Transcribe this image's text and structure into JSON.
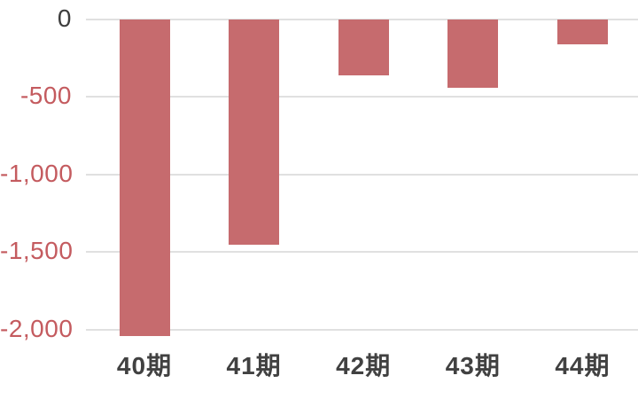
{
  "chart_data": {
    "type": "bar",
    "title": "",
    "xlabel": "",
    "ylabel": "",
    "categories": [
      "40期",
      "41期",
      "42期",
      "43期",
      "44期"
    ],
    "values": [
      -2040,
      -1450,
      -360,
      -440,
      -160
    ],
    "yticks": [
      0,
      -500,
      -1000,
      -1500,
      -2000
    ],
    "ytick_labels": [
      "0",
      "-500",
      "-1,000",
      "-1,500",
      "-2,000"
    ],
    "ylim": [
      -2150,
      0
    ],
    "grid": true,
    "legend": false
  },
  "colors": {
    "background": "#ffffff",
    "bar": "#c66b6e",
    "gridline": "#e0e0e0",
    "tick_zero": "#3d3d3d",
    "tick_negative": "#c45b5f",
    "x_label": "#414141"
  }
}
